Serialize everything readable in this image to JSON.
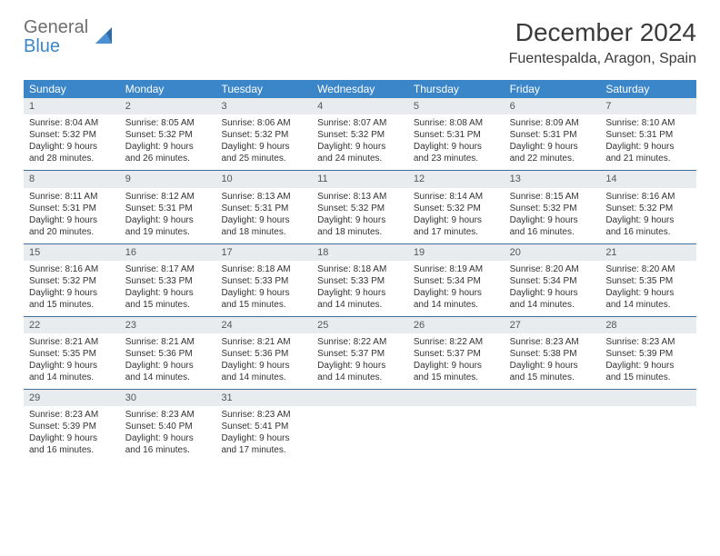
{
  "logo": {
    "general": "General",
    "blue": "Blue"
  },
  "title": {
    "month": "December 2024",
    "location": "Fuentespalda, Aragon, Spain"
  },
  "colors": {
    "header_bg": "#3a86c8",
    "header_text": "#ffffff",
    "row_divider": "#3a6fa0",
    "daynum_bg": "#e9ecef",
    "text": "#333333",
    "logo_general": "#6e6e6e",
    "logo_blue": "#3a86c8"
  },
  "typography": {
    "title_fontsize": 28,
    "location_fontsize": 16,
    "weekday_fontsize": 12,
    "daynum_fontsize": 11,
    "body_fontsize": 10
  },
  "weekdays": [
    "Sunday",
    "Monday",
    "Tuesday",
    "Wednesday",
    "Thursday",
    "Friday",
    "Saturday"
  ],
  "weeks": [
    [
      {
        "n": "1",
        "sr": "Sunrise: 8:04 AM",
        "ss": "Sunset: 5:32 PM",
        "dl": "Daylight: 9 hours and 28 minutes."
      },
      {
        "n": "2",
        "sr": "Sunrise: 8:05 AM",
        "ss": "Sunset: 5:32 PM",
        "dl": "Daylight: 9 hours and 26 minutes."
      },
      {
        "n": "3",
        "sr": "Sunrise: 8:06 AM",
        "ss": "Sunset: 5:32 PM",
        "dl": "Daylight: 9 hours and 25 minutes."
      },
      {
        "n": "4",
        "sr": "Sunrise: 8:07 AM",
        "ss": "Sunset: 5:32 PM",
        "dl": "Daylight: 9 hours and 24 minutes."
      },
      {
        "n": "5",
        "sr": "Sunrise: 8:08 AM",
        "ss": "Sunset: 5:31 PM",
        "dl": "Daylight: 9 hours and 23 minutes."
      },
      {
        "n": "6",
        "sr": "Sunrise: 8:09 AM",
        "ss": "Sunset: 5:31 PM",
        "dl": "Daylight: 9 hours and 22 minutes."
      },
      {
        "n": "7",
        "sr": "Sunrise: 8:10 AM",
        "ss": "Sunset: 5:31 PM",
        "dl": "Daylight: 9 hours and 21 minutes."
      }
    ],
    [
      {
        "n": "8",
        "sr": "Sunrise: 8:11 AM",
        "ss": "Sunset: 5:31 PM",
        "dl": "Daylight: 9 hours and 20 minutes."
      },
      {
        "n": "9",
        "sr": "Sunrise: 8:12 AM",
        "ss": "Sunset: 5:31 PM",
        "dl": "Daylight: 9 hours and 19 minutes."
      },
      {
        "n": "10",
        "sr": "Sunrise: 8:13 AM",
        "ss": "Sunset: 5:31 PM",
        "dl": "Daylight: 9 hours and 18 minutes."
      },
      {
        "n": "11",
        "sr": "Sunrise: 8:13 AM",
        "ss": "Sunset: 5:32 PM",
        "dl": "Daylight: 9 hours and 18 minutes."
      },
      {
        "n": "12",
        "sr": "Sunrise: 8:14 AM",
        "ss": "Sunset: 5:32 PM",
        "dl": "Daylight: 9 hours and 17 minutes."
      },
      {
        "n": "13",
        "sr": "Sunrise: 8:15 AM",
        "ss": "Sunset: 5:32 PM",
        "dl": "Daylight: 9 hours and 16 minutes."
      },
      {
        "n": "14",
        "sr": "Sunrise: 8:16 AM",
        "ss": "Sunset: 5:32 PM",
        "dl": "Daylight: 9 hours and 16 minutes."
      }
    ],
    [
      {
        "n": "15",
        "sr": "Sunrise: 8:16 AM",
        "ss": "Sunset: 5:32 PM",
        "dl": "Daylight: 9 hours and 15 minutes."
      },
      {
        "n": "16",
        "sr": "Sunrise: 8:17 AM",
        "ss": "Sunset: 5:33 PM",
        "dl": "Daylight: 9 hours and 15 minutes."
      },
      {
        "n": "17",
        "sr": "Sunrise: 8:18 AM",
        "ss": "Sunset: 5:33 PM",
        "dl": "Daylight: 9 hours and 15 minutes."
      },
      {
        "n": "18",
        "sr": "Sunrise: 8:18 AM",
        "ss": "Sunset: 5:33 PM",
        "dl": "Daylight: 9 hours and 14 minutes."
      },
      {
        "n": "19",
        "sr": "Sunrise: 8:19 AM",
        "ss": "Sunset: 5:34 PM",
        "dl": "Daylight: 9 hours and 14 minutes."
      },
      {
        "n": "20",
        "sr": "Sunrise: 8:20 AM",
        "ss": "Sunset: 5:34 PM",
        "dl": "Daylight: 9 hours and 14 minutes."
      },
      {
        "n": "21",
        "sr": "Sunrise: 8:20 AM",
        "ss": "Sunset: 5:35 PM",
        "dl": "Daylight: 9 hours and 14 minutes."
      }
    ],
    [
      {
        "n": "22",
        "sr": "Sunrise: 8:21 AM",
        "ss": "Sunset: 5:35 PM",
        "dl": "Daylight: 9 hours and 14 minutes."
      },
      {
        "n": "23",
        "sr": "Sunrise: 8:21 AM",
        "ss": "Sunset: 5:36 PM",
        "dl": "Daylight: 9 hours and 14 minutes."
      },
      {
        "n": "24",
        "sr": "Sunrise: 8:21 AM",
        "ss": "Sunset: 5:36 PM",
        "dl": "Daylight: 9 hours and 14 minutes."
      },
      {
        "n": "25",
        "sr": "Sunrise: 8:22 AM",
        "ss": "Sunset: 5:37 PM",
        "dl": "Daylight: 9 hours and 14 minutes."
      },
      {
        "n": "26",
        "sr": "Sunrise: 8:22 AM",
        "ss": "Sunset: 5:37 PM",
        "dl": "Daylight: 9 hours and 15 minutes."
      },
      {
        "n": "27",
        "sr": "Sunrise: 8:23 AM",
        "ss": "Sunset: 5:38 PM",
        "dl": "Daylight: 9 hours and 15 minutes."
      },
      {
        "n": "28",
        "sr": "Sunrise: 8:23 AM",
        "ss": "Sunset: 5:39 PM",
        "dl": "Daylight: 9 hours and 15 minutes."
      }
    ],
    [
      {
        "n": "29",
        "sr": "Sunrise: 8:23 AM",
        "ss": "Sunset: 5:39 PM",
        "dl": "Daylight: 9 hours and 16 minutes."
      },
      {
        "n": "30",
        "sr": "Sunrise: 8:23 AM",
        "ss": "Sunset: 5:40 PM",
        "dl": "Daylight: 9 hours and 16 minutes."
      },
      {
        "n": "31",
        "sr": "Sunrise: 8:23 AM",
        "ss": "Sunset: 5:41 PM",
        "dl": "Daylight: 9 hours and 17 minutes."
      },
      {
        "n": "",
        "sr": "",
        "ss": "",
        "dl": "",
        "empty": true
      },
      {
        "n": "",
        "sr": "",
        "ss": "",
        "dl": "",
        "empty": true
      },
      {
        "n": "",
        "sr": "",
        "ss": "",
        "dl": "",
        "empty": true
      },
      {
        "n": "",
        "sr": "",
        "ss": "",
        "dl": "",
        "empty": true
      }
    ]
  ]
}
